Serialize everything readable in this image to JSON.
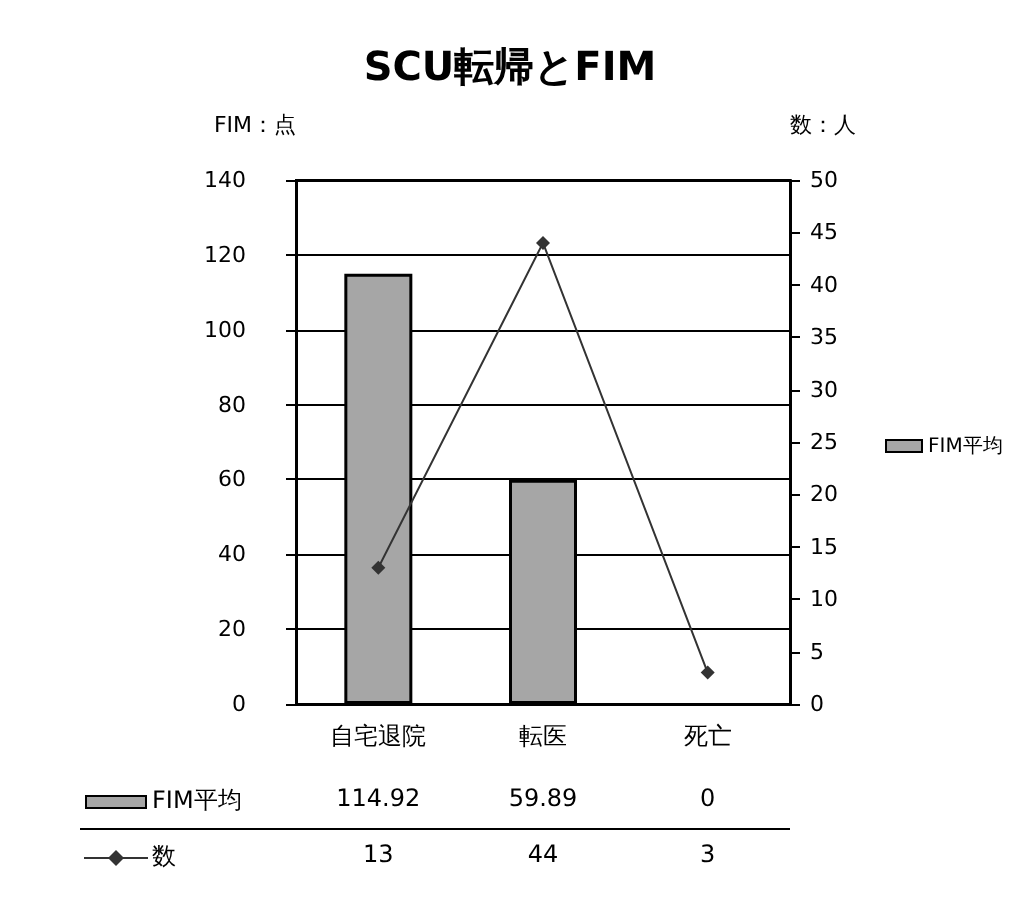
{
  "chart_data": {
    "type": "bar",
    "title": "SCU転帰とFIM",
    "ylabel": "FIM：点",
    "y2label": "数：人",
    "categories": [
      "自宅退院",
      "転医",
      "死亡"
    ],
    "series": [
      {
        "name": "FIM平均",
        "color": "#a6a6a6",
        "values": [
          114.92,
          59.89,
          0
        ]
      },
      {
        "name": "数",
        "type": "line",
        "axis": "y2",
        "color": "#333333",
        "marker": "diamond",
        "values": [
          13,
          44,
          3
        ]
      }
    ],
    "ylim": [
      0,
      140
    ],
    "yticks": [
      0,
      20,
      40,
      60,
      80,
      100,
      120,
      140
    ],
    "y2lim": [
      0,
      50
    ],
    "y2ticks": [
      0,
      5,
      10,
      15,
      20,
      25,
      30,
      35,
      40,
      45,
      50
    ],
    "grid": "y",
    "legend": "bottom left",
    "data_labels": true
  }
}
